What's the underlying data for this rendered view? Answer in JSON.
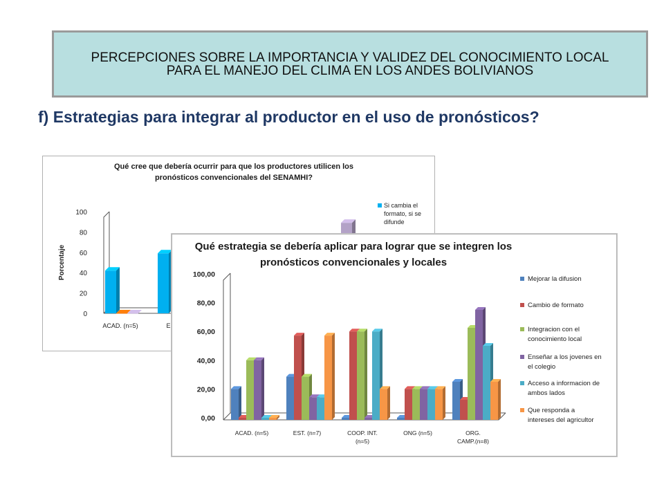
{
  "header": {
    "title": "PERCEPCIONES SOBRE LA IMPORTANCIA Y VALIDEZ DEL CONOCIMIENTO LOCAL  PARA EL MANEJO DEL CLIMA EN LOS ANDES BOLIVIANOS"
  },
  "subtitle": "f) Estrategias para integrar al productor en el uso de pronósticos?",
  "chart_data": [
    {
      "type": "bar",
      "title": "Qué cree que debería ocurrir para que los productores utilicen los pronósticos convencionales del SENAMHI?",
      "title_lines": [
        "Qué cree que debería ocurrir para que los productores utilicen los",
        "pronósticos convencionales del SENAMHI?"
      ],
      "ylabel": "Porcentaje",
      "xlabel": "",
      "ylim": [
        0,
        100
      ],
      "yticks": [
        "0",
        "20",
        "40",
        "60",
        "80",
        "100"
      ],
      "categories": [
        "ACAD. (n=5)",
        "EST."
      ],
      "legend_text_lines": [
        "Si cambia el",
        "formato, si se",
        "difunde"
      ],
      "series": [
        {
          "name": "Si cambia el formato, si se difunde",
          "color": "#00b0f0",
          "values": [
            42,
            59
          ]
        },
        {
          "name": "",
          "color": "#e36c09",
          "values": [
            0,
            null
          ]
        },
        {
          "name": "",
          "color": "#b3a2c7",
          "values": [
            0,
            null
          ]
        }
      ],
      "extra_bar": {
        "color": "#b3a2c7",
        "value": 89
      },
      "grid": false,
      "legend_position": "right",
      "partially_occluded": true
    },
    {
      "type": "bar",
      "title": "Qué estrategia se debería aplicar para lograr que se integren los pronósticos convencionales y locales",
      "title_lines": [
        "Qué estrategia se debería aplicar para lograr que se integren los",
        "pronósticos convencionales y locales"
      ],
      "xlabel": "",
      "ylabel": "",
      "ylim": [
        0,
        100
      ],
      "yticks": [
        "0,00",
        "20,00",
        "40,00",
        "60,00",
        "80,00",
        "100,00"
      ],
      "categories": [
        [
          "ACAD. (n=5)"
        ],
        [
          "EST. (n=7)"
        ],
        [
          "COOP. INT.",
          "(n=5)"
        ],
        [
          "ONG (n=5)"
        ],
        [
          "ORG.",
          "CAMP.(n=8)"
        ]
      ],
      "series": [
        {
          "name": "Mejorar la difusion",
          "legend_lines": [
            "Mejorar la difusion"
          ],
          "color": "#4f81bd",
          "values": [
            20,
            28.57,
            0,
            0,
            25
          ]
        },
        {
          "name": "Cambio de formato",
          "legend_lines": [
            "Cambio de formato"
          ],
          "color": "#c0504d",
          "values": [
            0,
            57.14,
            60,
            20,
            12.5
          ]
        },
        {
          "name": "Integracion con el conocimiento local",
          "legend_lines": [
            "Integracion con el",
            "conocimiento local"
          ],
          "color": "#9bbb59",
          "values": [
            40,
            28.57,
            60,
            20,
            62.5
          ]
        },
        {
          "name": "Enseñar a los jovenes en el colegio",
          "legend_lines": [
            "Enseñar a los jovenes en",
            "el colegio"
          ],
          "color": "#8064a2",
          "values": [
            40,
            14.29,
            0,
            20,
            75
          ]
        },
        {
          "name": "Acceso a informacion de ambos lados",
          "legend_lines": [
            "Acceso a informacion de",
            "ambos lados"
          ],
          "color": "#4bacc6",
          "values": [
            0,
            14.29,
            60,
            20,
            50
          ]
        },
        {
          "name": "Que responda a intereses del agricultor",
          "legend_lines": [
            "Que responda a",
            "intereses del agricultor"
          ],
          "color": "#f79646",
          "values": [
            0,
            57.14,
            20,
            20,
            25
          ]
        }
      ],
      "grid": false,
      "legend_position": "right"
    }
  ]
}
